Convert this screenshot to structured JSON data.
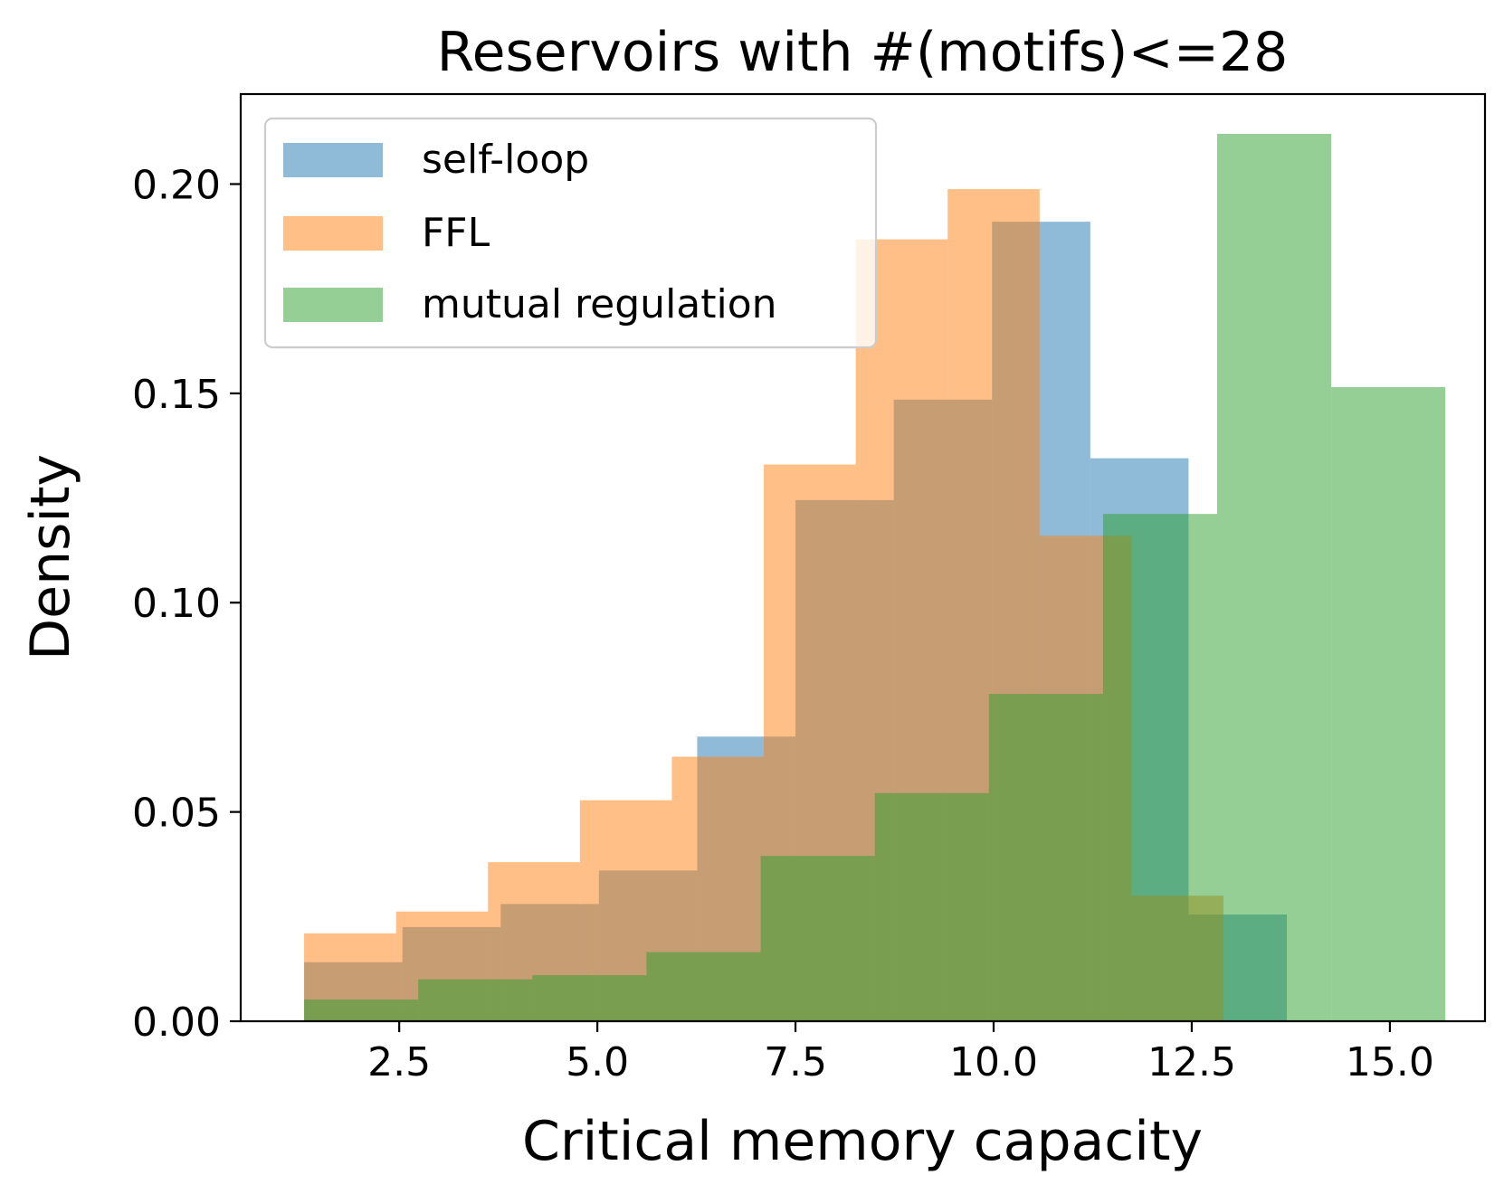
{
  "chart_data": {
    "type": "histogram",
    "title": "Reservoirs with #(motifs)<=28",
    "xlabel": "Critical memory capacity",
    "ylabel": "Density",
    "xlim": [
      0.5,
      16.2
    ],
    "ylim": [
      0,
      0.2215
    ],
    "xticks": [
      2.5,
      5.0,
      7.5,
      10.0,
      12.5,
      15.0
    ],
    "xtick_labels": [
      "2.5",
      "5.0",
      "7.5",
      "10.0",
      "12.5",
      "15.0"
    ],
    "yticks": [
      0.0,
      0.05,
      0.1,
      0.15,
      0.2
    ],
    "ytick_labels": [
      "0.00",
      "0.05",
      "0.10",
      "0.15",
      "0.20"
    ],
    "legend_position": "top-left",
    "series": [
      {
        "name": "self-loop",
        "color": "#1f77b4",
        "alpha": 0.5,
        "bins": [
          [
            1.3,
            2.54,
            0.0141
          ],
          [
            2.54,
            3.78,
            0.0225
          ],
          [
            3.78,
            5.02,
            0.028
          ],
          [
            5.02,
            6.26,
            0.036
          ],
          [
            6.26,
            7.5,
            0.068
          ],
          [
            7.5,
            8.74,
            0.1245
          ],
          [
            8.74,
            9.98,
            0.1485
          ],
          [
            9.98,
            11.22,
            0.191
          ],
          [
            11.22,
            12.46,
            0.1345
          ],
          [
            12.46,
            13.7,
            0.0255
          ]
        ]
      },
      {
        "name": "FFL",
        "color": "#ff7f0e",
        "alpha": 0.5,
        "bins": [
          [
            1.3,
            2.46,
            0.021
          ],
          [
            2.46,
            3.62,
            0.0262
          ],
          [
            3.62,
            4.78,
            0.038
          ],
          [
            4.78,
            5.94,
            0.0528
          ],
          [
            5.94,
            7.1,
            0.0632
          ],
          [
            7.1,
            8.26,
            0.133
          ],
          [
            8.26,
            9.42,
            0.1868
          ],
          [
            9.42,
            10.58,
            0.1988
          ],
          [
            10.58,
            11.74,
            0.116
          ],
          [
            11.74,
            12.9,
            0.03
          ]
        ]
      },
      {
        "name": "mutual regulation",
        "color": "#2ca02c",
        "alpha": 0.5,
        "bins": [
          [
            1.3,
            2.74,
            0.0052
          ],
          [
            2.74,
            4.18,
            0.01
          ],
          [
            4.18,
            5.62,
            0.011
          ],
          [
            5.62,
            7.06,
            0.0165
          ],
          [
            7.06,
            8.5,
            0.0395
          ],
          [
            8.5,
            9.94,
            0.0545
          ],
          [
            9.94,
            11.38,
            0.0782
          ],
          [
            11.38,
            12.82,
            0.1212
          ],
          [
            12.82,
            14.26,
            0.212
          ],
          [
            14.26,
            15.7,
            0.1515
          ]
        ]
      }
    ]
  }
}
